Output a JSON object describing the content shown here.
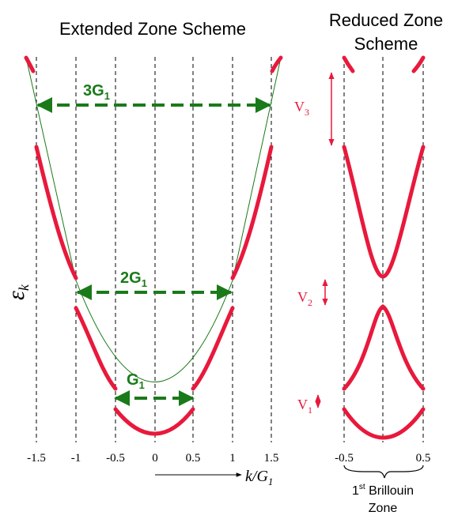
{
  "extended": {
    "title": "Extended Zone Scheme",
    "energy_symbol": "ε",
    "energy_subscript": "k",
    "x_ticks": [
      "-1.5",
      "-1",
      "-0.5",
      "0",
      "0.5",
      "1",
      "1.5"
    ],
    "axis_label_k": "k",
    "axis_label_sep": "/",
    "axis_label_G": "G",
    "axis_label_sub": "1",
    "gaps": [
      {
        "main": "3G",
        "sub": "1"
      },
      {
        "main": "2G",
        "sub": "1"
      },
      {
        "main": "G",
        "sub": "1"
      }
    ]
  },
  "reduced": {
    "title_line1": "Reduced Zone",
    "title_line2": "Scheme",
    "x_ticks": [
      "-0.5",
      "0.5"
    ],
    "potentials": [
      {
        "main": "V",
        "sub": "3"
      },
      {
        "main": "V",
        "sub": "2"
      },
      {
        "main": "V",
        "sub": "1"
      }
    ],
    "brillouin_sup": "st",
    "brillouin_num": "1",
    "brillouin_word": " Brillouin",
    "brillouin_line2": "Zone"
  },
  "colors": {
    "band": "#e8193c",
    "arrow": "#1a7a1a",
    "text": "#000000",
    "potential": "#e8193c"
  }
}
